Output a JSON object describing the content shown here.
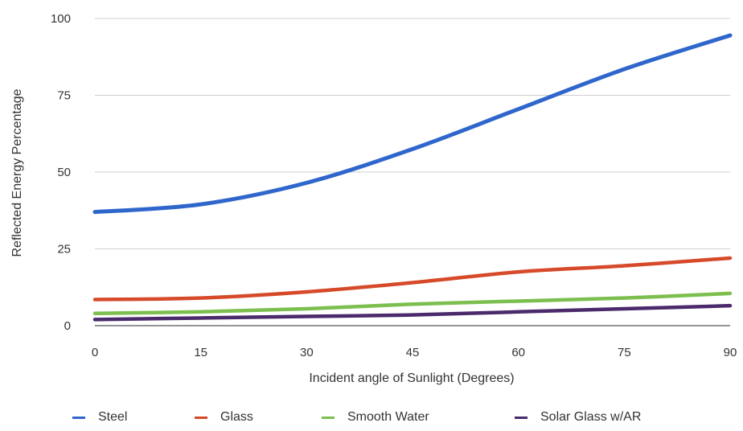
{
  "chart_data": {
    "type": "line",
    "title": "",
    "xlabel": "Incident angle of Sunlight (Degrees)",
    "ylabel": "Reflected Energy Percentage",
    "x": [
      0,
      15,
      30,
      45,
      60,
      75,
      90
    ],
    "xticks": [
      "0",
      "15",
      "30",
      "45",
      "60",
      "75",
      "90"
    ],
    "yticks": [
      "0",
      "25",
      "50",
      "75",
      "100"
    ],
    "xlim": [
      0,
      90
    ],
    "ylim": [
      0,
      100
    ],
    "grid": true,
    "legend_position": "bottom",
    "series": [
      {
        "name": "Steel",
        "color": "#2f66cc",
        "values": [
          37,
          39.5,
          46.5,
          57.5,
          70.5,
          83.5,
          94.5
        ]
      },
      {
        "name": "Glass",
        "color": "#d64a2a",
        "values": [
          8.5,
          9,
          11,
          14,
          17.5,
          19.5,
          22
        ]
      },
      {
        "name": "Smooth Water",
        "color": "#7cbf4e",
        "values": [
          4,
          4.5,
          5.5,
          7,
          8,
          9,
          10.5
        ]
      },
      {
        "name": "Solar Glass w/AR",
        "color": "#4b2a6b",
        "values": [
          2,
          2.5,
          3,
          3.5,
          4.5,
          5.5,
          6.5
        ]
      }
    ]
  }
}
